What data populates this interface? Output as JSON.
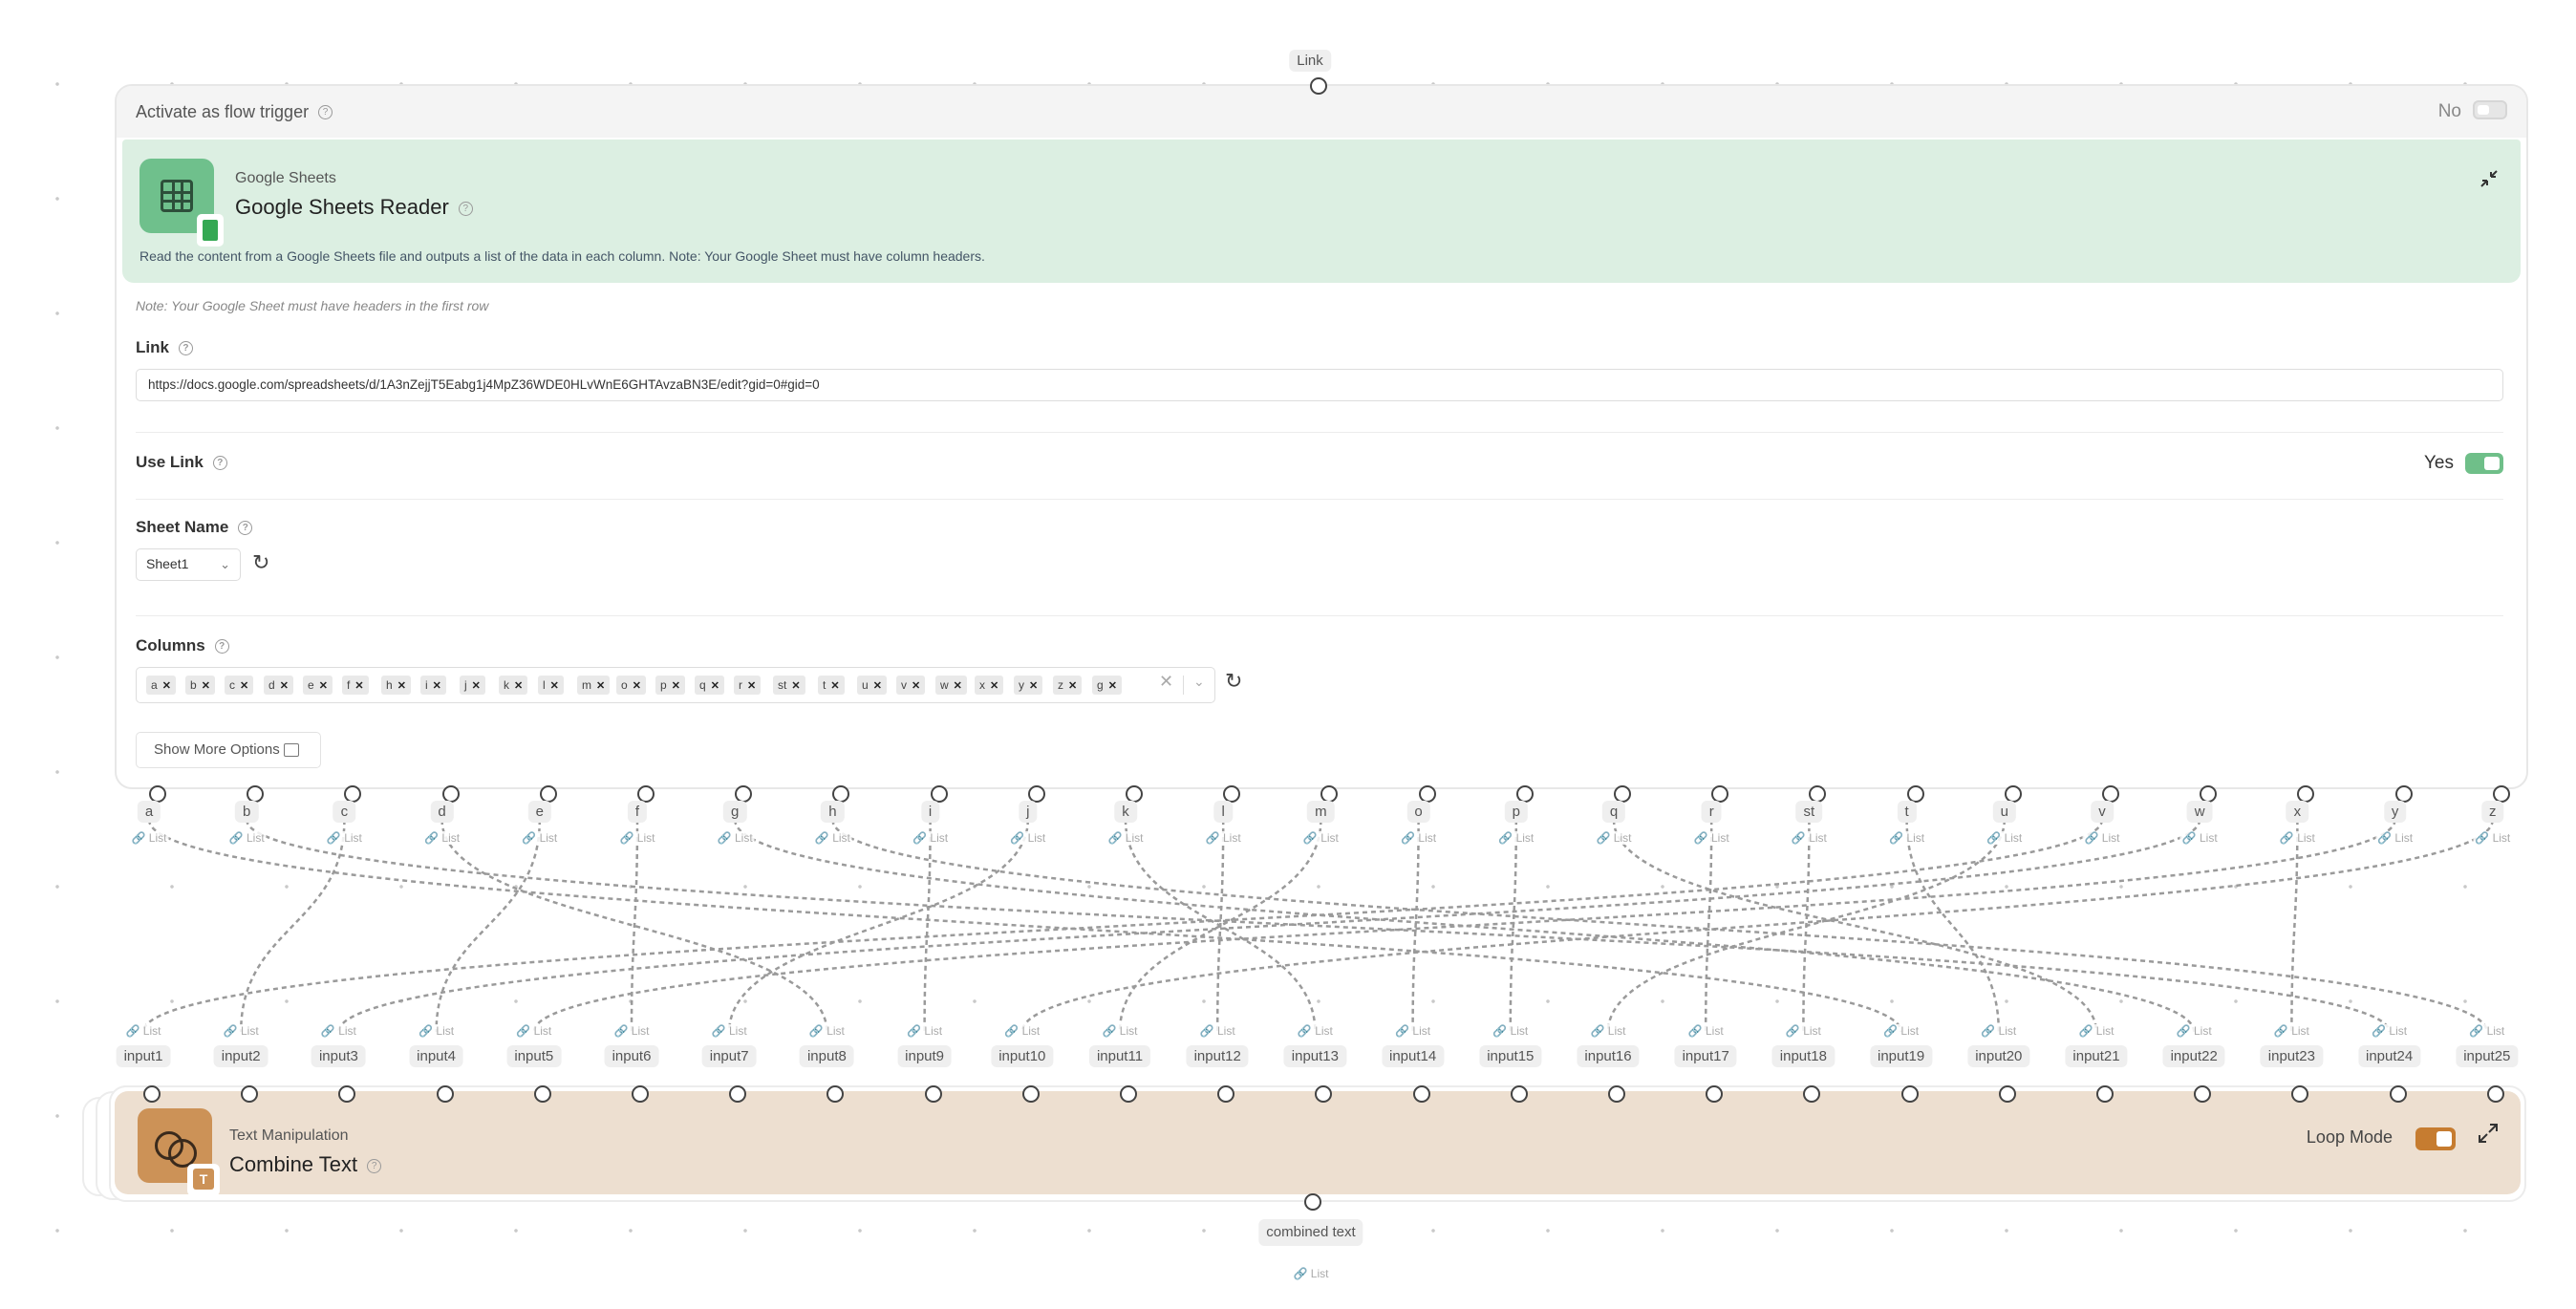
{
  "top_handle_label": "Link",
  "sheets_node": {
    "trigger_label": "Activate as flow trigger",
    "trigger_value": "No",
    "category": "Google Sheets",
    "title": "Google Sheets Reader",
    "description": "Read the content from a Google Sheets file and outputs a list of the data in each column. Note: Your Google Sheet must have column headers.",
    "note": "Note: Your Google Sheet must have headers in the first row",
    "link_label": "Link",
    "link_value": "https://docs.google.com/spreadsheets/d/1A3nZejjT5Eabg1j4MpZ36WDE0HLvWnE6GHTAvzaBN3E/edit?gid=0#gid=0",
    "use_link_label": "Use Link",
    "use_link_value": "Yes",
    "sheet_name_label": "Sheet Name",
    "sheet_name_value": "Sheet1",
    "columns_label": "Columns",
    "selected_columns": [
      "a",
      "b",
      "c",
      "d",
      "e",
      "f",
      "h",
      "i",
      "j",
      "k",
      "l",
      "m",
      "o",
      "p",
      "q",
      "r",
      "st",
      "t",
      "u",
      "v",
      "w",
      "x",
      "y",
      "z",
      "g"
    ],
    "show_more_label": "Show More Options",
    "outputs": [
      "a",
      "b",
      "c",
      "d",
      "e",
      "f",
      "g",
      "h",
      "i",
      "j",
      "k",
      "l",
      "m",
      "o",
      "p",
      "q",
      "r",
      "st",
      "t",
      "u",
      "v",
      "w",
      "x",
      "y",
      "z"
    ],
    "output_type": "List"
  },
  "combine_node": {
    "category": "Text Manipulation",
    "title": "Combine Text",
    "loop_mode_label": "Loop Mode",
    "inputs": [
      "input1",
      "input2",
      "input3",
      "input4",
      "input5",
      "input6",
      "input7",
      "input8",
      "input9",
      "input10",
      "input11",
      "input12",
      "input13",
      "input14",
      "input15",
      "input16",
      "input17",
      "input18",
      "input19",
      "input20",
      "input21",
      "input22",
      "input23",
      "input24",
      "input25"
    ],
    "input_type": "List",
    "output_label": "combined text",
    "output_type": "List"
  },
  "connections": [
    [
      "a",
      "input19"
    ],
    [
      "b",
      "input24"
    ],
    [
      "c",
      "input2"
    ],
    [
      "d",
      "input8"
    ],
    [
      "e",
      "input4"
    ],
    [
      "f",
      "input6"
    ],
    [
      "g",
      "input22"
    ],
    [
      "h",
      "input25"
    ],
    [
      "i",
      "input9"
    ],
    [
      "j",
      "input7"
    ],
    [
      "k",
      "input13"
    ],
    [
      "l",
      "input12"
    ],
    [
      "m",
      "input11"
    ],
    [
      "o",
      "input14"
    ],
    [
      "p",
      "input15"
    ],
    [
      "q",
      "input21"
    ],
    [
      "r",
      "input17"
    ],
    [
      "st",
      "input18"
    ],
    [
      "t",
      "input20"
    ],
    [
      "u",
      "input16"
    ],
    [
      "v",
      "input1"
    ],
    [
      "w",
      "input3"
    ],
    [
      "x",
      "input23"
    ],
    [
      "y",
      "input5"
    ],
    [
      "z",
      "input10"
    ]
  ]
}
